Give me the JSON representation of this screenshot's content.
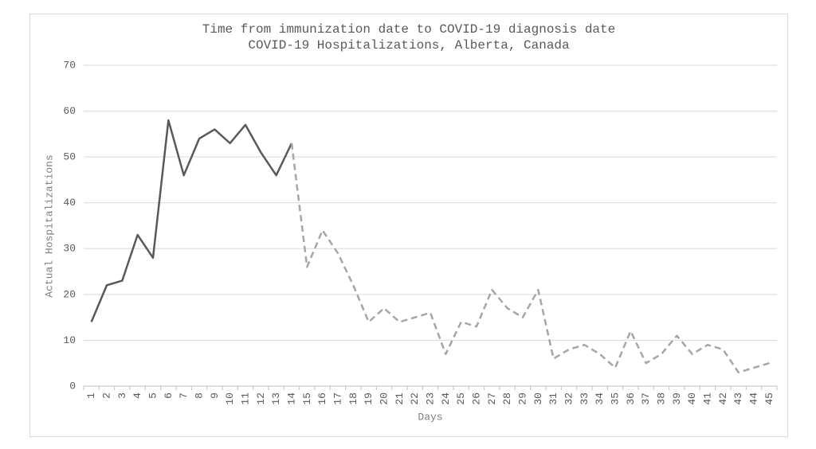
{
  "chart_data": {
    "type": "line",
    "title": "Time from immunization date to COVID-19 diagnosis date",
    "subtitle": "COVID-19 Hospitalizations, Alberta, Canada",
    "x_label": "Days",
    "y_label": "Actual Hospitalizations",
    "categories": [
      "1",
      "2",
      "3",
      "4",
      "5",
      "6",
      "7",
      "8",
      "9",
      "10",
      "11",
      "12",
      "13",
      "14",
      "15",
      "16",
      "17",
      "18",
      "19",
      "20",
      "21",
      "22",
      "23",
      "24",
      "25",
      "26",
      "27",
      "28",
      "29",
      "30",
      "31",
      "32",
      "33",
      "34",
      "35",
      "36",
      "37",
      "38",
      "39",
      "40",
      "41",
      "42",
      "43",
      "44",
      "45"
    ],
    "series": [
      {
        "color": "#595959",
        "style": "solid",
        "values": [
          14,
          22,
          23,
          33,
          28,
          58,
          46,
          54,
          56,
          53,
          57,
          51,
          46,
          53,
          null,
          null,
          null,
          null,
          null,
          null,
          null,
          null,
          null,
          null,
          null,
          null,
          null,
          null,
          null,
          null,
          null,
          null,
          null,
          null,
          null,
          null,
          null,
          null,
          null,
          null,
          null,
          null,
          null,
          null,
          null
        ]
      },
      {
        "color": "#a6a6a6",
        "style": "dashed",
        "values": [
          null,
          null,
          null,
          null,
          null,
          null,
          null,
          null,
          null,
          null,
          null,
          null,
          null,
          53,
          26,
          34,
          29,
          22,
          14,
          17,
          14,
          15,
          16,
          7,
          14,
          13,
          21,
          17,
          15,
          21,
          6,
          8,
          9,
          7,
          4,
          12,
          5,
          7,
          11,
          7,
          9,
          8,
          3,
          4,
          5
        ]
      }
    ],
    "ylim": [
      0,
      70
    ],
    "yticks": [
      0,
      10,
      20,
      30,
      40,
      50,
      60,
      70
    ],
    "grid": true
  }
}
